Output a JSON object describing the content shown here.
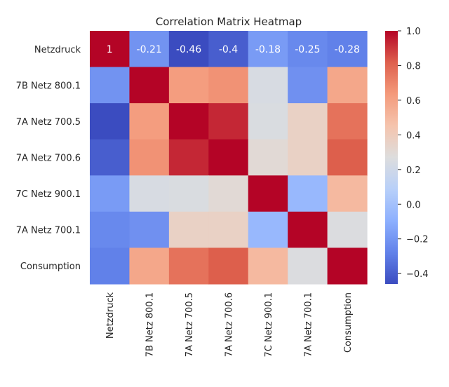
{
  "chart_data": {
    "type": "heatmap",
    "title": "Correlation Matrix Heatmap",
    "row_labels": [
      "Netzdruck",
      "7B Netz 800.1",
      "7A Netz 700.5",
      "7A Netz 700.6",
      "7C Netz 900.1",
      "7A Netz 700.1",
      "Consumption"
    ],
    "col_labels": [
      "Netzdruck",
      "7B Netz 800.1",
      "7A Netz 700.5",
      "7A Netz 700.6",
      "7C Netz 900.1",
      "7A Netz 700.1",
      "Consumption"
    ],
    "values": [
      [
        1,
        -0.21,
        -0.46,
        -0.4,
        -0.18,
        -0.25,
        -0.28
      ],
      [
        -0.21,
        1,
        0.62,
        0.66,
        0.24,
        -0.22,
        0.58
      ],
      [
        -0.46,
        0.62,
        1,
        0.93,
        0.25,
        0.36,
        0.76
      ],
      [
        -0.4,
        0.66,
        0.93,
        1,
        0.3,
        0.36,
        0.82
      ],
      [
        -0.18,
        0.24,
        0.25,
        0.3,
        1,
        -0.05,
        0.5
      ],
      [
        -0.25,
        -0.22,
        0.36,
        0.36,
        -0.05,
        1,
        0.26
      ],
      [
        -0.28,
        0.58,
        0.76,
        0.82,
        0.5,
        0.26,
        1
      ]
    ],
    "annotated_row": 0,
    "annotations": [
      "1",
      "-0.21",
      "-0.46",
      "-0.4",
      "-0.18",
      "-0.25",
      "-0.28"
    ],
    "colormap": "coolwarm",
    "vmin": -0.46,
    "vmax": 1.0,
    "colorbar_ticks": [
      1.0,
      0.8,
      0.6,
      0.4,
      0.2,
      0.0,
      -0.2,
      -0.4
    ],
    "colorbar_tick_labels": [
      "1.0",
      "0.8",
      "0.6",
      "0.4",
      "0.2",
      "0.0",
      "−0.2",
      "−0.4"
    ]
  }
}
